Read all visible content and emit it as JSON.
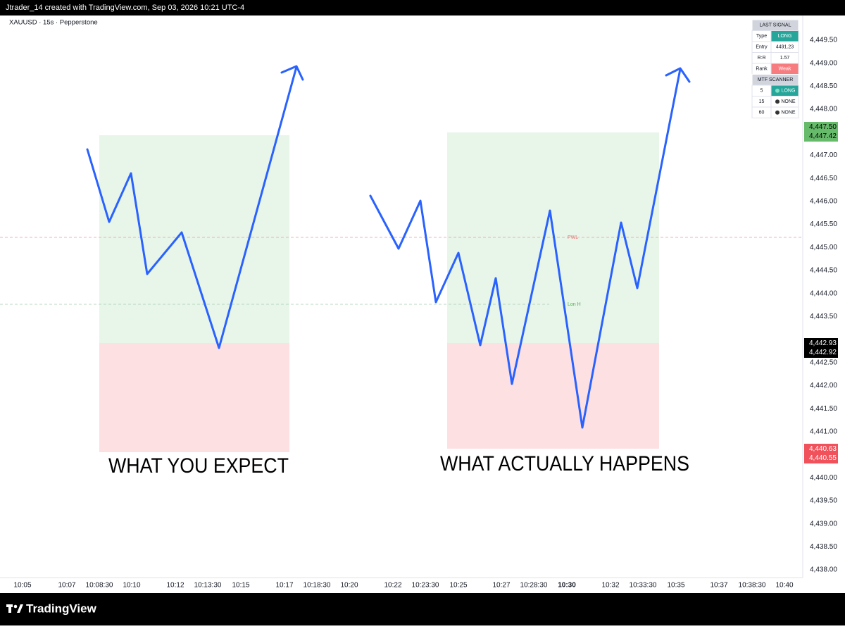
{
  "header": {
    "credit": "Jtrader_14 created with TradingView.com, Sep 03, 2026 10:21 UTC-4",
    "symbol": "XAUUSD · 15s · Pepperstone"
  },
  "price_axis": {
    "labels": [
      "4,449.50",
      "4,449.00",
      "4,448.50",
      "4,448.00",
      "4,447.00",
      "4,446.50",
      "4,446.00",
      "4,445.50",
      "4,445.00",
      "4,444.50",
      "4,444.00",
      "4,443.50",
      "4,442.50",
      "4,442.00",
      "4,441.50",
      "4,441.00",
      "4,440.00",
      "4,439.50",
      "4,439.00",
      "4,438.50",
      "4,438.00"
    ],
    "badges": [
      {
        "top": "4,447.50",
        "bottom": "4,447.42"
      },
      {
        "top": "4,442.93",
        "bottom": "4,442.92"
      },
      {
        "top": "4,440.63",
        "bottom": "4,440.55"
      }
    ]
  },
  "time_axis": {
    "labels": [
      "10:05",
      "10:07",
      "10:08:30",
      "10:10",
      "10:12",
      "10:13:30",
      "10:15",
      "10:17",
      "10:18:30",
      "10:20",
      "10:22",
      "10:23:30",
      "10:25",
      "10:27",
      "10:28:30",
      "10:30",
      "10:32",
      "10:33:30",
      "10:35",
      "10:37",
      "10:38:30",
      "10:40"
    ]
  },
  "levels": {
    "pwl": "PWL",
    "lon_h": "Lon H"
  },
  "annotations": {
    "left": "WHAT YOU EXPECT",
    "right": "WHAT ACTUALLY HAPPENS"
  },
  "panel": {
    "title": "LAST SIGNAL",
    "rows": [
      [
        "Type",
        "LONG"
      ],
      [
        "Entry",
        "4491.23"
      ],
      [
        "R:R",
        "1.57"
      ],
      [
        "Rank",
        "Weak"
      ]
    ],
    "scanner_title": "MTF SCANNER",
    "scanner_rows": [
      [
        "5",
        "LONG"
      ],
      [
        "15",
        "NONE"
      ],
      [
        "60",
        "NONE"
      ]
    ]
  },
  "footer": {
    "brand": "TradingView"
  }
}
